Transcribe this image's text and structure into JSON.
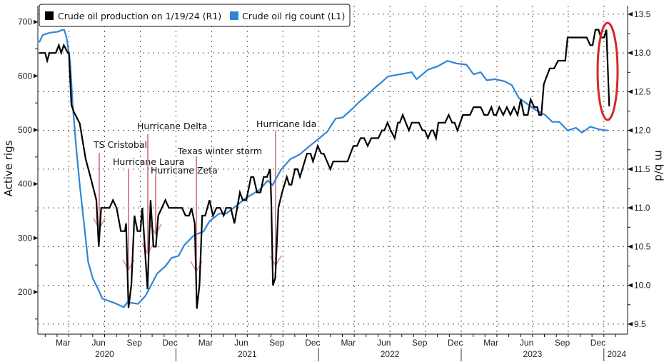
{
  "chart_data": {
    "type": "line",
    "title": "",
    "x_unit": "months since Jan 1 2020",
    "xlim": [
      0.38,
      50
    ],
    "x_month_labels": [
      "Mar",
      "Jun",
      "Sep",
      "Dec"
    ],
    "x_year_labels": [
      "2020",
      "2021",
      "2022",
      "2023",
      "2024"
    ],
    "left_axis": {
      "label": "Active rigs",
      "ylim": [
        122,
        730
      ],
      "ticks": [
        700,
        600,
        500,
        400,
        300,
        200
      ]
    },
    "right_axis": {
      "label": "m b/d",
      "ylim": [
        9.37,
        13.61
      ],
      "ticks": [
        "13.5",
        "13.0",
        "12.5",
        "12.0",
        "11.5",
        "11.0",
        "10.5",
        "10.0",
        "9.5"
      ]
    },
    "grid": true,
    "legend_position": "top-left",
    "series": [
      {
        "name": "Crude oil production on 1/19/24 (R1)",
        "axis": "right",
        "color": "#000000",
        "points": [
          [
            0.5,
            13.0
          ],
          [
            1.0,
            13.0
          ],
          [
            1.17,
            12.9
          ],
          [
            1.36,
            13.0
          ],
          [
            1.9,
            13.0
          ],
          [
            2.15,
            13.1
          ],
          [
            2.35,
            13.0
          ],
          [
            2.57,
            13.1
          ],
          [
            2.91,
            13.0
          ],
          [
            3.0,
            13.0
          ],
          [
            3.21,
            12.33
          ],
          [
            3.41,
            12.24
          ],
          [
            3.91,
            12.09
          ],
          [
            4.41,
            11.63
          ],
          [
            4.81,
            11.4
          ],
          [
            5.31,
            11.1
          ],
          [
            5.51,
            10.5
          ],
          [
            5.71,
            11.0
          ],
          [
            6.41,
            11.0
          ],
          [
            6.71,
            11.1
          ],
          [
            7.01,
            11.0
          ],
          [
            7.37,
            10.7
          ],
          [
            7.71,
            10.7
          ],
          [
            7.81,
            10.8
          ],
          [
            8.01,
            9.71
          ],
          [
            8.25,
            10.01
          ],
          [
            8.51,
            10.9
          ],
          [
            8.77,
            10.7
          ],
          [
            9.01,
            10.7
          ],
          [
            9.17,
            11.0
          ],
          [
            9.61,
            9.95
          ],
          [
            9.87,
            11.1
          ],
          [
            10.11,
            10.5
          ],
          [
            10.31,
            10.5
          ],
          [
            10.51,
            10.9
          ],
          [
            10.81,
            11.0
          ],
          [
            11.11,
            11.1
          ],
          [
            11.41,
            11.0
          ],
          [
            12.51,
            11.0
          ],
          [
            12.81,
            10.9
          ],
          [
            13.11,
            10.9
          ],
          [
            13.31,
            11.0
          ],
          [
            13.58,
            10.8
          ],
          [
            13.76,
            9.7
          ],
          [
            13.98,
            10.0
          ],
          [
            14.21,
            10.9
          ],
          [
            14.46,
            10.9
          ],
          [
            14.82,
            11.1
          ],
          [
            15.12,
            10.9
          ],
          [
            15.42,
            11.0
          ],
          [
            15.72,
            11.0
          ],
          [
            16.02,
            10.9
          ],
          [
            16.22,
            11.0
          ],
          [
            16.62,
            11.0
          ],
          [
            16.92,
            10.8
          ],
          [
            17.38,
            11.2
          ],
          [
            17.62,
            11.1
          ],
          [
            17.92,
            11.1
          ],
          [
            18.32,
            11.4
          ],
          [
            18.52,
            11.4
          ],
          [
            18.82,
            11.2
          ],
          [
            19.12,
            11.2
          ],
          [
            19.38,
            11.4
          ],
          [
            19.66,
            11.4
          ],
          [
            19.92,
            11.5
          ],
          [
            20.02,
            11.1
          ],
          [
            20.16,
            10.0
          ],
          [
            20.36,
            10.1
          ],
          [
            20.62,
            11.0
          ],
          [
            20.93,
            11.2
          ],
          [
            21.33,
            11.4
          ],
          [
            21.53,
            11.3
          ],
          [
            21.72,
            11.3
          ],
          [
            22.02,
            11.5
          ],
          [
            22.23,
            11.5
          ],
          [
            22.43,
            11.4
          ],
          [
            23.03,
            11.7
          ],
          [
            23.33,
            11.7
          ],
          [
            23.53,
            11.6
          ],
          [
            23.93,
            11.8
          ],
          [
            24.23,
            11.7
          ],
          [
            24.43,
            11.7
          ],
          [
            24.99,
            11.5
          ],
          [
            25.23,
            11.6
          ],
          [
            26.43,
            11.6
          ],
          [
            26.93,
            11.8
          ],
          [
            27.23,
            11.8
          ],
          [
            27.53,
            11.9
          ],
          [
            27.83,
            11.9
          ],
          [
            28.13,
            11.8
          ],
          [
            28.43,
            11.9
          ],
          [
            29.03,
            11.9
          ],
          [
            29.33,
            12.0
          ],
          [
            29.53,
            12.0
          ],
          [
            29.8,
            12.1
          ],
          [
            30.07,
            12.0
          ],
          [
            30.4,
            11.9
          ],
          [
            30.67,
            12.1
          ],
          [
            30.83,
            12.1
          ],
          [
            31.08,
            12.2
          ],
          [
            31.34,
            12.1
          ],
          [
            31.6,
            12.0
          ],
          [
            31.84,
            12.1
          ],
          [
            32.44,
            12.1
          ],
          [
            32.74,
            12.0
          ],
          [
            32.94,
            12.0
          ],
          [
            33.2,
            11.9
          ],
          [
            33.48,
            12.0
          ],
          [
            33.64,
            12.0
          ],
          [
            33.88,
            11.9
          ],
          [
            34.08,
            12.1
          ],
          [
            34.64,
            12.1
          ],
          [
            34.94,
            12.2
          ],
          [
            35.24,
            12.1
          ],
          [
            35.44,
            12.1
          ],
          [
            35.68,
            12.0
          ],
          [
            36.14,
            12.2
          ],
          [
            36.74,
            12.2
          ],
          [
            37.04,
            12.3
          ],
          [
            37.64,
            12.3
          ],
          [
            37.94,
            12.2
          ],
          [
            38.24,
            12.2
          ],
          [
            38.54,
            12.3
          ],
          [
            38.74,
            12.2
          ],
          [
            38.94,
            12.2
          ],
          [
            39.2,
            12.3
          ],
          [
            39.54,
            12.2
          ],
          [
            39.84,
            12.3
          ],
          [
            40.14,
            12.2
          ],
          [
            40.44,
            12.3
          ],
          [
            40.74,
            12.2
          ],
          [
            41.0,
            12.4
          ],
          [
            41.28,
            12.2
          ],
          [
            41.6,
            12.2
          ],
          [
            41.84,
            12.4
          ],
          [
            42.14,
            12.3
          ],
          [
            42.4,
            12.3
          ],
          [
            42.55,
            12.2
          ],
          [
            42.74,
            12.2
          ],
          [
            42.95,
            12.6
          ],
          [
            43.45,
            12.8
          ],
          [
            43.81,
            12.8
          ],
          [
            44.15,
            12.9
          ],
          [
            44.75,
            12.9
          ],
          [
            44.95,
            13.2
          ],
          [
            46.55,
            13.2
          ],
          [
            46.85,
            13.1
          ],
          [
            47.05,
            13.1
          ],
          [
            47.29,
            13.3
          ],
          [
            47.55,
            13.3
          ],
          [
            47.75,
            13.2
          ],
          [
            48.01,
            13.2
          ],
          [
            48.21,
            13.3
          ],
          [
            48.45,
            12.31
          ]
        ]
      },
      {
        "name": "Crude oil rig count (L1)",
        "axis": "left",
        "color": "#2f86d6",
        "points": [
          [
            0.5,
            662
          ],
          [
            0.8,
            676
          ],
          [
            1.4,
            680
          ],
          [
            2.11,
            682
          ],
          [
            2.41,
            685
          ],
          [
            2.61,
            685
          ],
          [
            2.8,
            671
          ],
          [
            3.1,
            627
          ],
          [
            3.31,
            548
          ],
          [
            3.61,
            468
          ],
          [
            3.91,
            398
          ],
          [
            4.31,
            318
          ],
          [
            4.61,
            256
          ],
          [
            5.01,
            225
          ],
          [
            5.51,
            203
          ],
          [
            5.81,
            188
          ],
          [
            6.41,
            183
          ],
          [
            6.91,
            179
          ],
          [
            7.61,
            172
          ],
          [
            7.91,
            181
          ],
          [
            8.81,
            178
          ],
          [
            9.41,
            192
          ],
          [
            9.81,
            208
          ],
          [
            10.41,
            234
          ],
          [
            11.12,
            248
          ],
          [
            11.62,
            263
          ],
          [
            12.22,
            267
          ],
          [
            12.71,
            287
          ],
          [
            13.52,
            305
          ],
          [
            14.32,
            312
          ],
          [
            14.82,
            331
          ],
          [
            15.62,
            345
          ],
          [
            16.22,
            345
          ],
          [
            17.22,
            362
          ],
          [
            17.82,
            373
          ],
          [
            19.02,
            389
          ],
          [
            19.72,
            406
          ],
          [
            20.13,
            398
          ],
          [
            20.82,
            426
          ],
          [
            21.63,
            446
          ],
          [
            22.43,
            455
          ],
          [
            23.23,
            470
          ],
          [
            24.03,
            484
          ],
          [
            24.73,
            497
          ],
          [
            25.43,
            521
          ],
          [
            26.03,
            523
          ],
          [
            26.83,
            539
          ],
          [
            27.43,
            552
          ],
          [
            28.03,
            563
          ],
          [
            28.63,
            576
          ],
          [
            29.23,
            587
          ],
          [
            29.83,
            599
          ],
          [
            30.83,
            603
          ],
          [
            31.84,
            607
          ],
          [
            32.24,
            594
          ],
          [
            33.24,
            612
          ],
          [
            34.04,
            618
          ],
          [
            34.84,
            628
          ],
          [
            35.64,
            623
          ],
          [
            36.44,
            621
          ],
          [
            37.04,
            603
          ],
          [
            37.64,
            607
          ],
          [
            38.14,
            592
          ],
          [
            38.84,
            594
          ],
          [
            39.65,
            590
          ],
          [
            40.25,
            583
          ],
          [
            40.85,
            559
          ],
          [
            41.45,
            550
          ],
          [
            42.25,
            537
          ],
          [
            43.05,
            528
          ],
          [
            43.65,
            515
          ],
          [
            44.25,
            515
          ],
          [
            44.95,
            499
          ],
          [
            45.65,
            504
          ],
          [
            46.15,
            495
          ],
          [
            46.85,
            506
          ],
          [
            47.65,
            501
          ],
          [
            48.35,
            499
          ]
        ]
      }
    ],
    "annotations": [
      {
        "text": "TS Cristobal"
      },
      {
        "text": "Hurricane Laura"
      },
      {
        "text": "Hurricane Delta"
      },
      {
        "text": "Hurricane Zeta"
      },
      {
        "text": "Texas winter storm"
      },
      {
        "text": "Hurricane Ida"
      }
    ],
    "highlight_color": "#d9262b"
  }
}
